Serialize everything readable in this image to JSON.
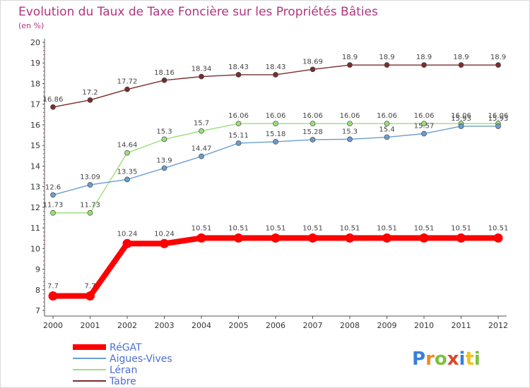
{
  "chart_data": {
    "type": "line",
    "title": "Evolution du Taux de Taxe Foncière sur les Propriétés Bâties",
    "subtitle": "(en %)",
    "xlabel": "",
    "ylabel": "",
    "x": [
      "2000",
      "2001",
      "2002",
      "2003",
      "2004",
      "2005",
      "2006",
      "2007",
      "2008",
      "2009",
      "2010",
      "2011",
      "2012"
    ],
    "ylim": [
      7,
      20
    ],
    "yticks": [
      7,
      8,
      9,
      10,
      11,
      12,
      13,
      14,
      15,
      16,
      17,
      18,
      19,
      20
    ],
    "grid": false,
    "legend_position": "bottom-left",
    "series": [
      {
        "name": "RéGAT",
        "color": "#ff0000",
        "values": [
          7.7,
          7.7,
          10.24,
          10.24,
          10.51,
          10.51,
          10.51,
          10.51,
          10.51,
          10.51,
          10.51,
          10.51,
          10.51
        ],
        "labels": [
          "7.7",
          "7.7",
          "10.24",
          "10.24",
          "10.51",
          "10.51",
          "10.51",
          "10.51",
          "10.51",
          "10.51",
          "10.51",
          "10.51",
          "10.51"
        ]
      },
      {
        "name": "Aigues-Vives",
        "color": "#6a9ed1",
        "values": [
          12.6,
          13.09,
          13.35,
          13.9,
          14.47,
          15.11,
          15.18,
          15.28,
          15.3,
          15.4,
          15.57,
          15.93,
          15.93
        ],
        "labels": [
          "12.6",
          "13.09",
          "13.35",
          "13.9",
          "14.47",
          "15.11",
          "15.18",
          "15.28",
          "15.3",
          "15.4",
          "15.57",
          "15.93",
          "15.93"
        ]
      },
      {
        "name": "Léran",
        "color": "#99e07a",
        "values": [
          11.73,
          11.73,
          14.64,
          15.3,
          15.7,
          16.06,
          16.06,
          16.06,
          16.06,
          16.06,
          16.06,
          16.06,
          16.06
        ],
        "labels": [
          "11.73",
          "11.73",
          "14.64",
          "15.3",
          "15.7",
          "16.06",
          "16.06",
          "16.06",
          "16.06",
          "16.06",
          "16.06",
          "16.06",
          "16.06"
        ]
      },
      {
        "name": "Tabre",
        "color": "#7a2d2d",
        "values": [
          16.86,
          17.2,
          17.72,
          18.16,
          18.34,
          18.43,
          18.43,
          18.69,
          18.9,
          18.9,
          18.9,
          18.9,
          18.9
        ],
        "labels": [
          "16.86",
          "17.2",
          "17.72",
          "18.16",
          "18.34",
          "18.43",
          "18.43",
          "18.69",
          "18.9",
          "18.9",
          "18.9",
          "18.9",
          "18.9"
        ]
      }
    ],
    "logo": {
      "text": "Proxiti",
      "letter_colors": [
        "#3a7fd9",
        "#f08a1c",
        "#7cc142",
        "#e2432c",
        "#3a7fd9",
        "#f2c21b",
        "#7cc142"
      ]
    }
  }
}
